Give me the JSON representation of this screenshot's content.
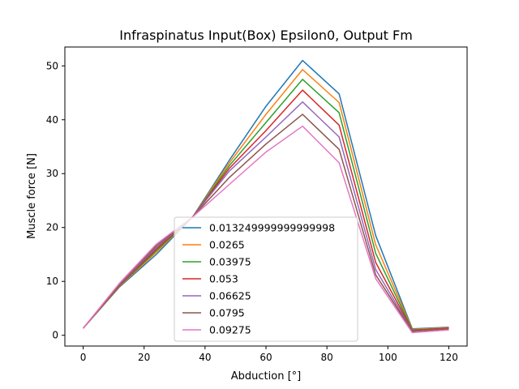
{
  "chart_data": {
    "type": "line",
    "title": "Infraspinatus Input(Box) Epsilon0, Output Fm",
    "xlabel": "Abduction [°]",
    "ylabel": "Muscle force [N]",
    "xlim": [
      -6,
      126
    ],
    "ylim": [
      -2,
      53.5
    ],
    "xticks": [
      0,
      20,
      40,
      60,
      80,
      100,
      120
    ],
    "yticks": [
      0,
      10,
      20,
      30,
      40,
      50
    ],
    "grid": false,
    "legend_position": "lower-center",
    "x": [
      0,
      12,
      24,
      36,
      48,
      60,
      72,
      84,
      96,
      108,
      120
    ],
    "series": [
      {
        "name": "0.013249999999999998",
        "color": "#1f77b4",
        "values": [
          1.3,
          9.0,
          15.0,
          22.0,
          32.5,
          42.5,
          51.0,
          44.8,
          18.5,
          1.2,
          1.5
        ]
      },
      {
        "name": "0.0265",
        "color": "#ff7f0e",
        "values": [
          1.3,
          9.1,
          15.4,
          22.0,
          32.0,
          41.0,
          49.3,
          43.2,
          16.8,
          1.1,
          1.4
        ]
      },
      {
        "name": "0.03975",
        "color": "#2ca02c",
        "values": [
          1.3,
          9.2,
          15.7,
          22.0,
          31.5,
          39.5,
          47.5,
          41.3,
          15.2,
          1.0,
          1.3
        ]
      },
      {
        "name": "0.053",
        "color": "#d62728",
        "values": [
          1.3,
          9.3,
          16.0,
          22.0,
          31.0,
          38.0,
          45.5,
          39.0,
          13.5,
          0.9,
          1.3
        ]
      },
      {
        "name": "0.06625",
        "color": "#9467bd",
        "values": [
          1.3,
          9.4,
          16.3,
          22.0,
          30.5,
          36.8,
          43.3,
          36.8,
          12.2,
          0.8,
          1.2
        ]
      },
      {
        "name": "0.0795",
        "color": "#8c564b",
        "values": [
          1.3,
          9.5,
          16.6,
          22.0,
          29.3,
          35.5,
          41.0,
          34.5,
          11.2,
          0.7,
          1.2
        ]
      },
      {
        "name": "0.09275",
        "color": "#e377c2",
        "values": [
          1.3,
          9.7,
          16.9,
          22.0,
          28.0,
          34.0,
          38.8,
          32.0,
          10.5,
          0.5,
          1.0
        ]
      }
    ]
  }
}
